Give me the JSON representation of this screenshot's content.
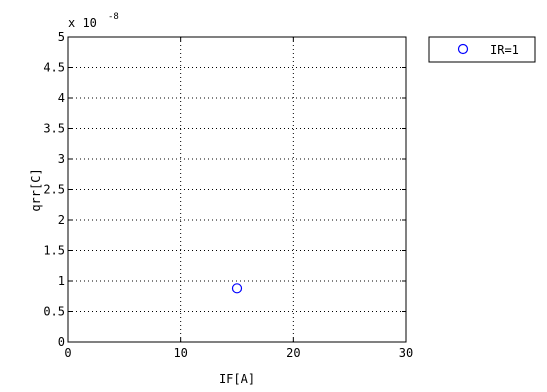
{
  "chart_data": {
    "type": "scatter",
    "title": "",
    "xlabel": "IF[A]",
    "ylabel": "qrr[C]",
    "xlim": [
      0,
      30
    ],
    "ylim": [
      0,
      5
    ],
    "x_ticks": [
      0,
      10,
      20,
      30
    ],
    "x_tick_labels": [
      "0",
      "10",
      "20",
      "30"
    ],
    "y_ticks": [
      0,
      0.5,
      1,
      1.5,
      2,
      2.5,
      3,
      3.5,
      4,
      4.5,
      5
    ],
    "y_tick_labels": [
      "0",
      "0.5",
      "1",
      "1.5",
      "2",
      "2.5",
      "3",
      "3.5",
      "4",
      "4.5",
      "5"
    ],
    "y_exponent_prefix": "x 10",
    "y_exponent_power": "-8",
    "grid": true,
    "legend_position": "outside-top-right",
    "series": [
      {
        "name": "IR=1",
        "marker": "circle-open",
        "color": "#0000ff",
        "points": [
          {
            "x": 15,
            "y": 0.88
          }
        ]
      }
    ]
  }
}
